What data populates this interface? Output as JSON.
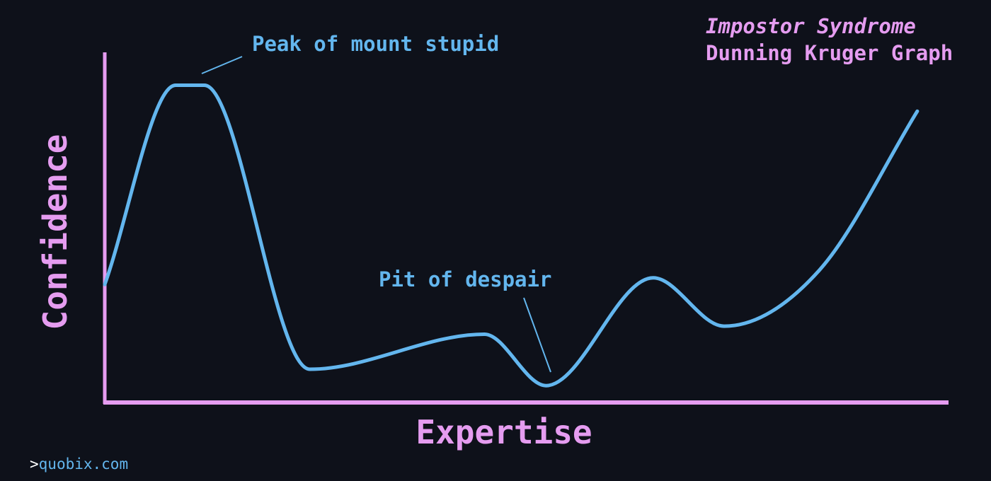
{
  "chart_data": {
    "type": "line",
    "title": "Impostor Syndrome",
    "subtitle": "Dunning Kruger Graph",
    "xlabel": "Expertise",
    "ylabel": "Confidence",
    "xlim": [
      0,
      100
    ],
    "ylim": [
      0,
      100
    ],
    "grid": false,
    "legend": "none",
    "series": [
      {
        "x": [
          0,
          8.4,
          11.8,
          24.3,
          45.0,
          52.3,
          65.0,
          73.4,
          84.7,
          96.3
        ],
        "y": [
          33.7,
          90.6,
          90.6,
          9.5,
          19.5,
          4.8,
          35.6,
          21.8,
          37.8,
          83.2
        ]
      }
    ],
    "annotations": [
      {
        "text": "Peak of mount stupid",
        "x": 11.4,
        "y": 94.4
      },
      {
        "text": "Pit of despair",
        "x": 52.6,
        "y": 8.9
      }
    ],
    "colors": {
      "background": "#0e111a",
      "axis": "#e59cf0",
      "line": "#63b6ee",
      "annotation": "#63b6ee",
      "title": "#e59cf0"
    }
  },
  "footer": {
    "prompt": ">",
    "site": "quobix.com"
  }
}
